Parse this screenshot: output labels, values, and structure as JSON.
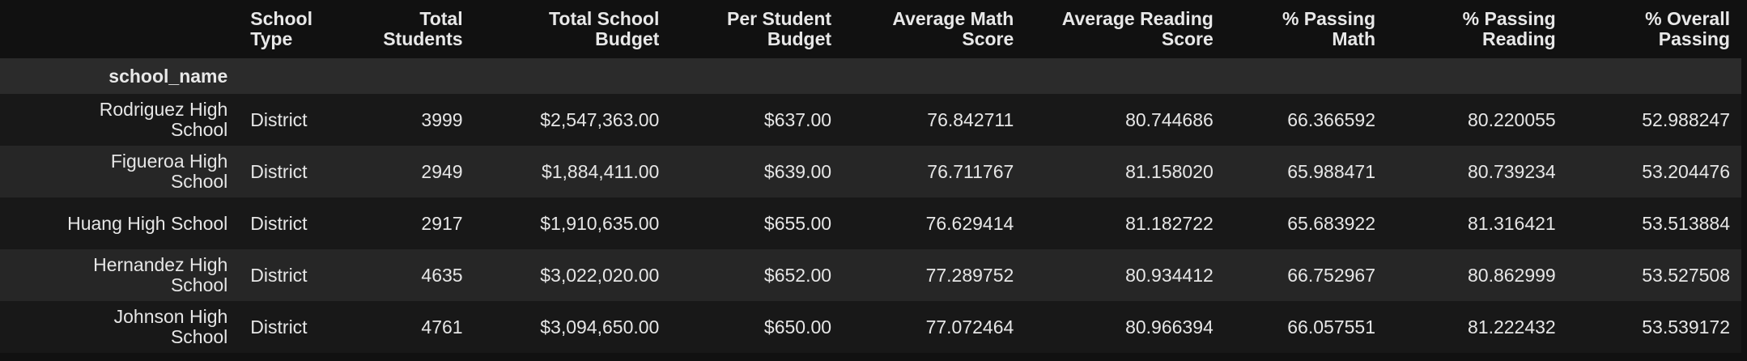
{
  "table": {
    "index_name": "school_name",
    "columns": [
      "School\nType",
      "Total\nStudents",
      "Total School\nBudget",
      "Per Student\nBudget",
      "Average Math\nScore",
      "Average Reading\nScore",
      "% Passing\nMath",
      "% Passing\nReading",
      "% Overall\nPassing"
    ],
    "rows": [
      {
        "school_name": "Rodriguez High\nSchool",
        "school_type": "District",
        "total_students": "3999",
        "total_budget": "$2,547,363.00",
        "per_student_budget": "$637.00",
        "avg_math": "76.842711",
        "avg_reading": "80.744686",
        "pct_math": "66.366592",
        "pct_reading": "80.220055",
        "pct_overall": "52.988247"
      },
      {
        "school_name": "Figueroa High\nSchool",
        "school_type": "District",
        "total_students": "2949",
        "total_budget": "$1,884,411.00",
        "per_student_budget": "$639.00",
        "avg_math": "76.711767",
        "avg_reading": "81.158020",
        "pct_math": "65.988471",
        "pct_reading": "80.739234",
        "pct_overall": "53.204476"
      },
      {
        "school_name": "Huang High School",
        "school_type": "District",
        "total_students": "2917",
        "total_budget": "$1,910,635.00",
        "per_student_budget": "$655.00",
        "avg_math": "76.629414",
        "avg_reading": "81.182722",
        "pct_math": "65.683922",
        "pct_reading": "81.316421",
        "pct_overall": "53.513884"
      },
      {
        "school_name": "Hernandez High\nSchool",
        "school_type": "District",
        "total_students": "4635",
        "total_budget": "$3,022,020.00",
        "per_student_budget": "$652.00",
        "avg_math": "77.289752",
        "avg_reading": "80.934412",
        "pct_math": "66.752967",
        "pct_reading": "80.862999",
        "pct_overall": "53.527508"
      },
      {
        "school_name": "Johnson High\nSchool",
        "school_type": "District",
        "total_students": "4761",
        "total_budget": "$3,094,650.00",
        "per_student_budget": "$650.00",
        "avg_math": "77.072464",
        "avg_reading": "80.966394",
        "pct_math": "66.057551",
        "pct_reading": "81.222432",
        "pct_overall": "53.539172"
      }
    ]
  }
}
